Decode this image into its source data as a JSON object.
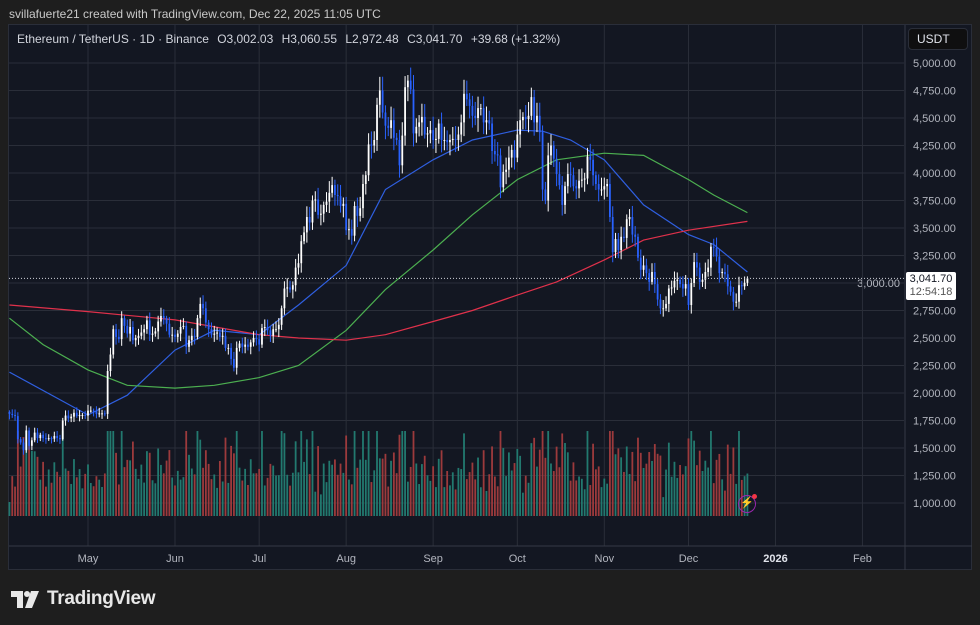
{
  "credit": "svillafuerte21 created with TradingView.com, Dec 22, 2025 11:05 UTC",
  "legend": {
    "symbol": "Ethereum / TetherUS · 1D · Binance",
    "open": "O3,002.03",
    "high": "H3,060.55",
    "low": "L2,972.48",
    "close": "C3,041.70",
    "change": "+39.68 (+1.32%)"
  },
  "price_axis": {
    "currency": "USDT",
    "last_price": "3,041.70",
    "countdown": "12:54:18"
  },
  "logo": "TradingView",
  "colors": {
    "up": "#ffffff",
    "down": "#2962ff",
    "ma_blue": "#2f5fe0",
    "ma_green": "#4caf50",
    "ma_red": "#e0314b",
    "vol_up": "#22796f",
    "vol_down": "#9c3a3c",
    "background": "#131722",
    "grid": "#2a2e39"
  },
  "icons": {
    "alert": "lightning-bolt-icon",
    "logo": "tradingview-logo-icon"
  },
  "chart_data": {
    "type": "candlestick",
    "title": "Ethereum / TetherUS · 1D · Binance",
    "interval": "1D",
    "start_date": "2025-04-03",
    "end_date": "2025-12-22",
    "ylim": [
      900,
      5100
    ],
    "yticks": [
      "5,000.00",
      "4,750.00",
      "4,500.00",
      "4,250.00",
      "4,000.00",
      "3,750.00",
      "3,500.00",
      "3,250.00",
      "3,000.00",
      "2,750.00",
      "2,500.00",
      "2,250.00",
      "2,000.00",
      "1,750.00",
      "1,500.00",
      "1,250.00",
      "1,000.00"
    ],
    "ytick_values": [
      5000,
      4750,
      4500,
      4250,
      4000,
      3750,
      3500,
      3250,
      3000,
      2750,
      2500,
      2250,
      2000,
      1750,
      1500,
      1250,
      1000
    ],
    "xticks": [
      {
        "label": "May",
        "date": "2025-05-01"
      },
      {
        "label": "Jun",
        "date": "2025-06-01"
      },
      {
        "label": "Jul",
        "date": "2025-07-01"
      },
      {
        "label": "Aug",
        "date": "2025-08-01"
      },
      {
        "label": "Sep",
        "date": "2025-09-01"
      },
      {
        "label": "Oct",
        "date": "2025-10-01"
      },
      {
        "label": "Nov",
        "date": "2025-11-01"
      },
      {
        "label": "Dec",
        "date": "2025-12-01"
      },
      {
        "label": "2026",
        "date": "2026-01-01",
        "bold": true
      },
      {
        "label": "Feb",
        "date": "2026-02-01"
      }
    ],
    "grid": true,
    "last_candle": {
      "open": 3002.03,
      "high": 3060.55,
      "low": 2972.48,
      "close": 3041.7
    },
    "closes": [
      1810,
      1800,
      1790,
      1580,
      1550,
      1480,
      1660,
      1520,
      1570,
      1640,
      1590,
      1620,
      1590,
      1580,
      1590,
      1585,
      1610,
      1590,
      1580,
      1750,
      1795,
      1770,
      1785,
      1820,
      1790,
      1800,
      1800,
      1795,
      1840,
      1840,
      1835,
      1810,
      1815,
      1815,
      1810,
      2200,
      2350,
      2580,
      2510,
      2490,
      2680,
      2610,
      2540,
      2600,
      2480,
      2500,
      2520,
      2550,
      2580,
      2660,
      2530,
      2540,
      2560,
      2650,
      2700,
      2680,
      2630,
      2530,
      2530,
      2510,
      2540,
      2600,
      2610,
      2420,
      2480,
      2520,
      2510,
      2680,
      2810,
      2770,
      2640,
      2580,
      2530,
      2540,
      2550,
      2510,
      2520,
      2410,
      2410,
      2310,
      2230,
      2410,
      2450,
      2420,
      2440,
      2420,
      2460,
      2500,
      2490,
      2440,
      2590,
      2600,
      2570,
      2520,
      2580,
      2580,
      2620,
      2770,
      2950,
      2960,
      2940,
      2980,
      3140,
      3180,
      3380,
      3460,
      3600,
      3550,
      3750,
      3760,
      3620,
      3630,
      3710,
      3740,
      3820,
      3890,
      3800,
      3790,
      3700,
      3720,
      3480,
      3490,
      3430,
      3700,
      3610,
      3680,
      3900,
      3980,
      4260,
      4250,
      4300,
      4620,
      4750,
      4550,
      4430,
      4410,
      4480,
      4320,
      4300,
      4070,
      4340,
      4780,
      4840,
      4760,
      4360,
      4420,
      4460,
      4510,
      4350,
      4360,
      4390,
      4300,
      4310,
      4450,
      4300,
      4300,
      4280,
      4300,
      4310,
      4300,
      4350,
      4460,
      4720,
      4670,
      4610,
      4520,
      4500,
      4590,
      4590,
      4460,
      4480,
      4450,
      4200,
      4170,
      4160,
      3870,
      4010,
      4030,
      4140,
      4210,
      4140,
      4350,
      4480,
      4510,
      4490,
      4520,
      4690,
      4460,
      4520,
      4370,
      3850,
      3750,
      4160,
      4250,
      4130,
      3990,
      3890,
      3710,
      3880,
      3990,
      3980,
      3880,
      3860,
      3930,
      3940,
      3950,
      4150,
      4120,
      3980,
      3900,
      3850,
      3850,
      3880,
      3900,
      3600,
      3280,
      3400,
      3300,
      3420,
      3410,
      3580,
      3600,
      3440,
      3420,
      3230,
      3120,
      3160,
      3090,
      3010,
      3100,
      2990,
      2850,
      2770,
      2770,
      2810,
      2950,
      2960,
      3020,
      3030,
      2990,
      2950,
      2990,
      2800,
      3000,
      3190,
      3140,
      3010,
      3030,
      3100,
      3140,
      3330,
      3320,
      3240,
      3090,
      3100,
      3080,
      2970,
      2920,
      2830,
      2830,
      2980,
      2970,
      3002.03,
      3041.7
    ],
    "moving_averages": [
      {
        "color": "blue",
        "points": [
          [
            "2025-04-03",
            2190
          ],
          [
            "2025-05-01",
            1800
          ],
          [
            "2025-05-15",
            1980
          ],
          [
            "2025-06-01",
            2390
          ],
          [
            "2025-06-15",
            2570
          ],
          [
            "2025-07-01",
            2530
          ],
          [
            "2025-07-15",
            2800
          ],
          [
            "2025-08-01",
            3160
          ],
          [
            "2025-08-15",
            3850
          ],
          [
            "2025-09-01",
            4120
          ],
          [
            "2025-09-15",
            4300
          ],
          [
            "2025-10-01",
            4390
          ],
          [
            "2025-10-10",
            4380
          ],
          [
            "2025-10-20",
            4300
          ],
          [
            "2025-11-01",
            4120
          ],
          [
            "2025-11-15",
            3710
          ],
          [
            "2025-12-01",
            3440
          ],
          [
            "2025-12-10",
            3350
          ],
          [
            "2025-12-22",
            3100
          ]
        ]
      },
      {
        "color": "green",
        "points": [
          [
            "2025-04-03",
            2680
          ],
          [
            "2025-04-15",
            2440
          ],
          [
            "2025-05-01",
            2210
          ],
          [
            "2025-05-15",
            2070
          ],
          [
            "2025-06-01",
            2045
          ],
          [
            "2025-06-15",
            2070
          ],
          [
            "2025-07-01",
            2140
          ],
          [
            "2025-07-15",
            2250
          ],
          [
            "2025-08-01",
            2570
          ],
          [
            "2025-08-15",
            2940
          ],
          [
            "2025-09-01",
            3300
          ],
          [
            "2025-09-15",
            3620
          ],
          [
            "2025-10-01",
            3940
          ],
          [
            "2025-10-15",
            4120
          ],
          [
            "2025-11-01",
            4180
          ],
          [
            "2025-11-15",
            4160
          ],
          [
            "2025-12-01",
            3940
          ],
          [
            "2025-12-10",
            3800
          ],
          [
            "2025-12-22",
            3640
          ]
        ]
      },
      {
        "color": "red",
        "points": [
          [
            "2025-04-03",
            2800
          ],
          [
            "2025-05-01",
            2740
          ],
          [
            "2025-06-01",
            2665
          ],
          [
            "2025-07-01",
            2530
          ],
          [
            "2025-07-15",
            2500
          ],
          [
            "2025-08-01",
            2480
          ],
          [
            "2025-08-15",
            2530
          ],
          [
            "2025-09-01",
            2650
          ],
          [
            "2025-09-15",
            2750
          ],
          [
            "2025-10-01",
            2890
          ],
          [
            "2025-10-15",
            3010
          ],
          [
            "2025-11-01",
            3210
          ],
          [
            "2025-11-15",
            3390
          ],
          [
            "2025-12-01",
            3480
          ],
          [
            "2025-12-22",
            3560
          ]
        ]
      }
    ]
  }
}
